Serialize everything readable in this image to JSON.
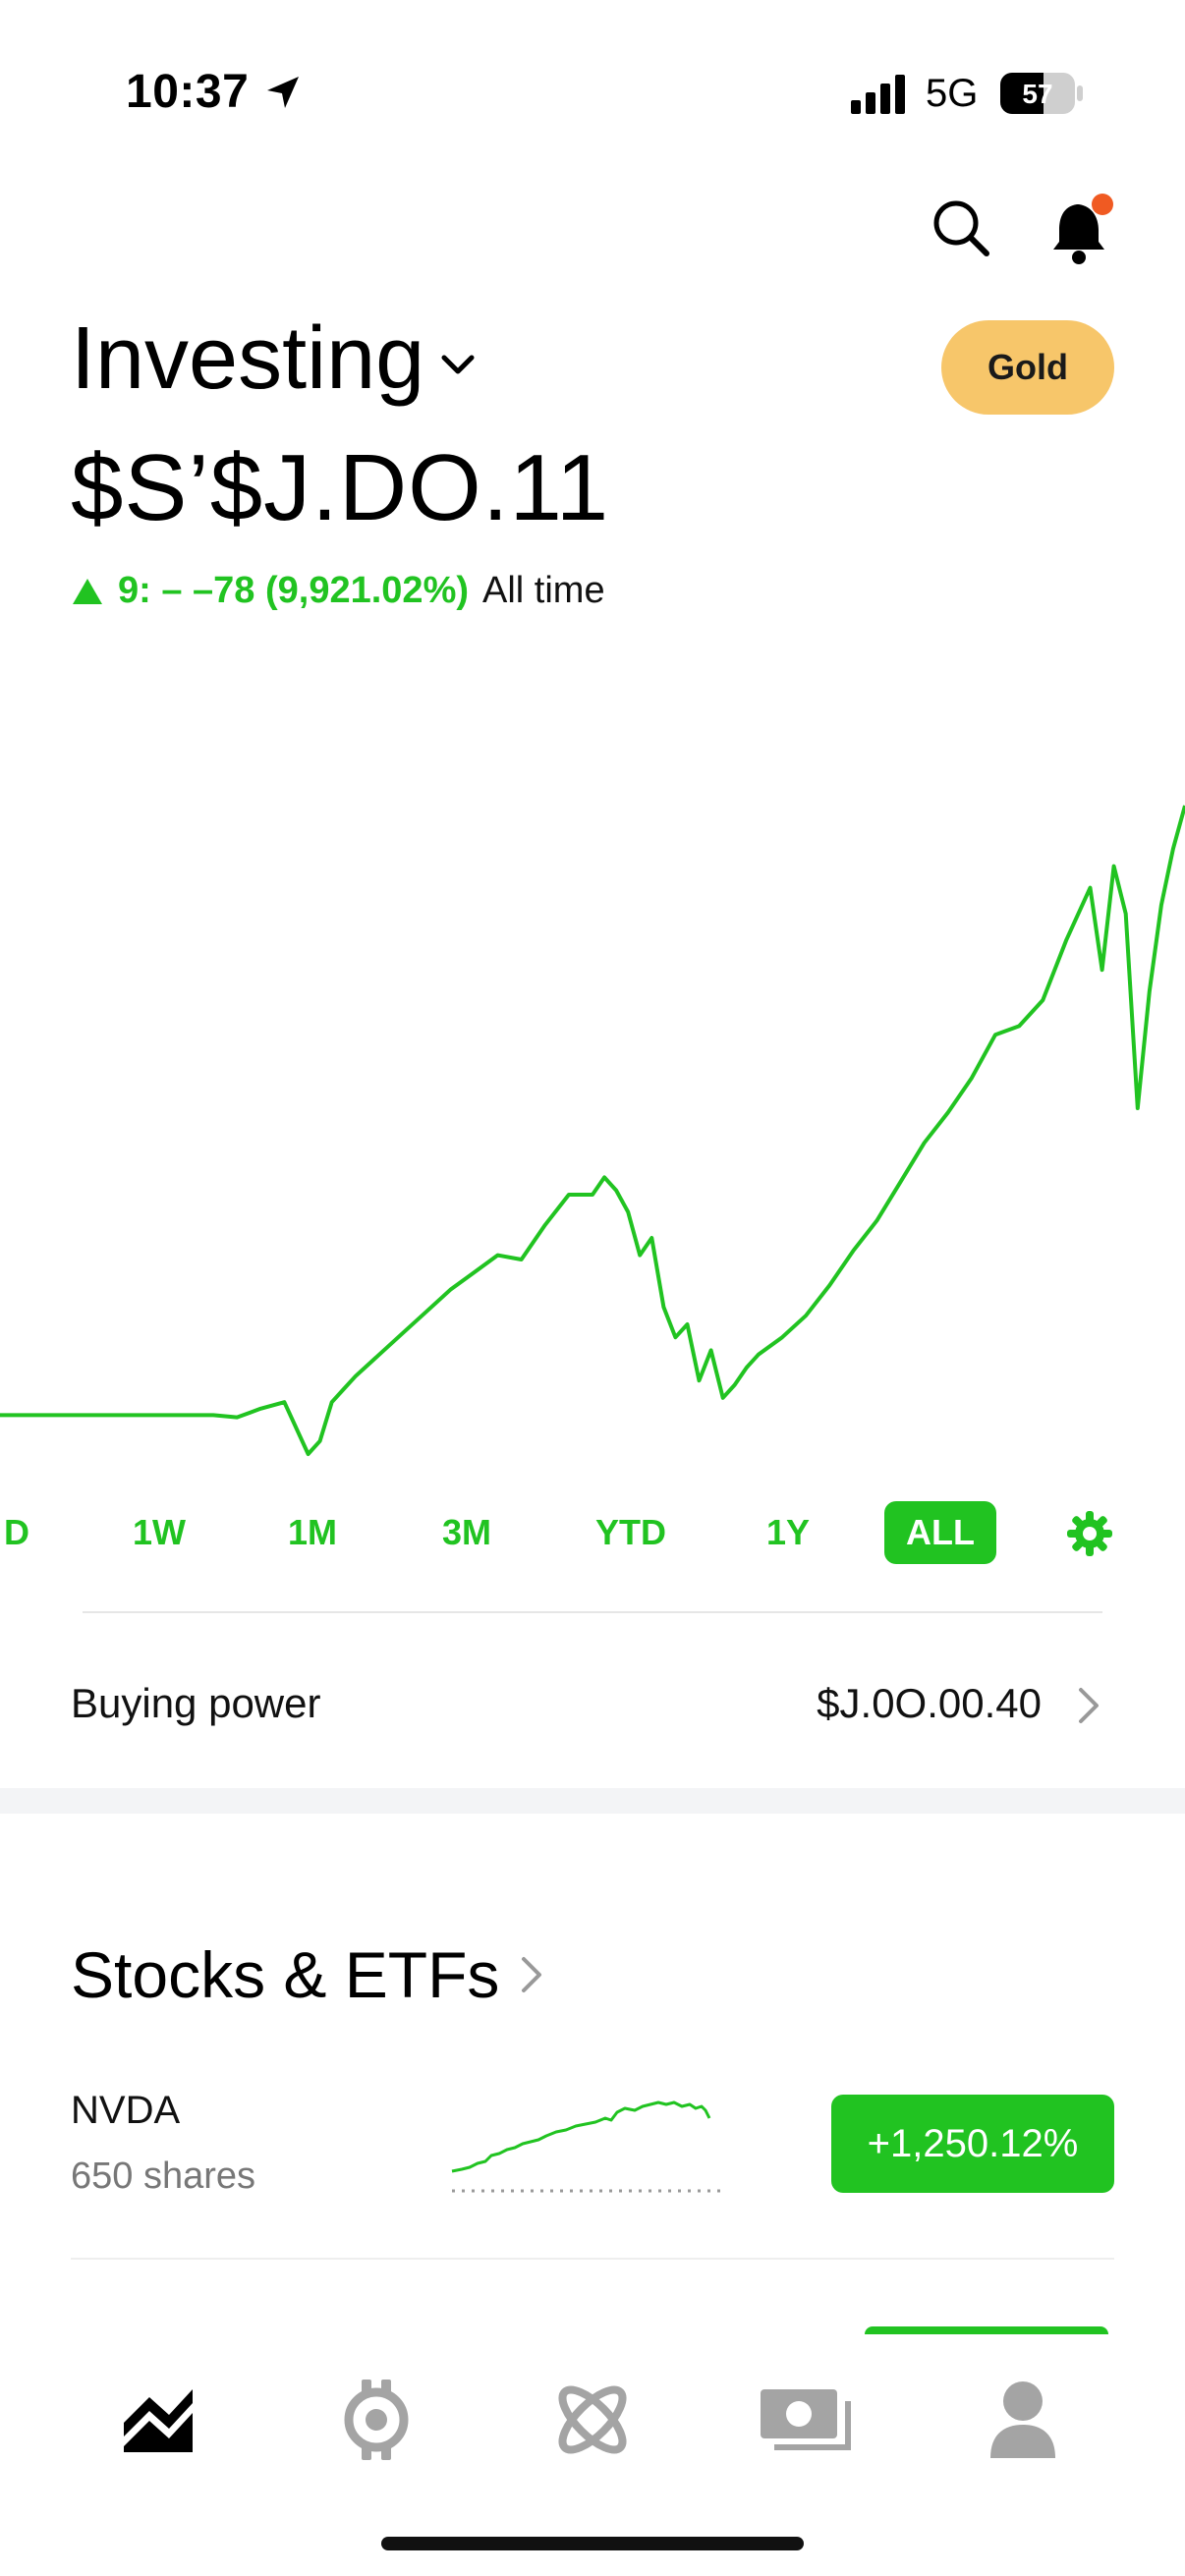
{
  "status_bar": {
    "time": "10:37",
    "network": "5G",
    "battery": "57"
  },
  "header": {
    "title": "Investing",
    "gold_label": "Gold",
    "balance": "$S’$J.DO.11",
    "change": "9: – –78 (9,921.02%)",
    "change_period": "All time"
  },
  "chart_data": {
    "type": "line",
    "title": "",
    "xlabel": "",
    "ylabel": "",
    "grid": false,
    "color": "#21c321",
    "x": [
      0,
      2,
      4,
      6,
      8,
      10,
      12,
      14,
      16,
      18,
      20,
      21,
      22,
      24,
      26,
      27,
      28,
      29,
      30,
      32,
      34,
      36,
      38,
      40,
      42,
      44,
      46,
      48,
      50,
      51,
      52,
      53,
      54,
      55,
      56,
      57,
      58,
      59,
      60,
      61,
      62,
      63,
      64,
      66,
      68,
      70,
      72,
      74,
      76,
      78,
      80,
      82,
      84,
      86,
      88,
      90,
      92,
      93,
      94,
      95,
      96,
      97,
      98,
      99,
      100
    ],
    "values": [
      0,
      0,
      0,
      0,
      0,
      0,
      0,
      0,
      0,
      0,
      -0.5,
      0.5,
      1.5,
      3,
      -9,
      -6,
      3,
      6,
      9,
      14,
      19,
      24,
      29,
      33,
      37,
      36,
      44,
      51,
      51,
      55,
      52,
      47,
      37,
      41,
      25,
      18,
      21,
      8,
      15,
      4,
      7,
      11,
      14,
      18,
      23,
      30,
      38,
      45,
      54,
      63,
      70,
      78,
      88,
      90,
      96,
      110,
      122,
      103,
      127,
      116,
      71,
      98,
      118,
      131,
      141
    ]
  },
  "ranges": {
    "items": [
      "D",
      "1W",
      "1M",
      "3M",
      "YTD",
      "1Y",
      "ALL"
    ],
    "active": "ALL"
  },
  "buying_power": {
    "label": "Buying power",
    "value": "$J.0O.00.40"
  },
  "stocks": {
    "title": "Stocks & ETFs",
    "rows": [
      {
        "ticker": "NVDA",
        "shares": "650 shares",
        "change": "+1,250.12%"
      }
    ]
  },
  "colors": {
    "accent": "#21c321",
    "gold": "#f7c66a",
    "notification": "#f05a22"
  },
  "nav": {
    "tabs": [
      {
        "name": "investing-tab-icon",
        "active": true
      },
      {
        "name": "crypto-tab-icon",
        "active": false
      },
      {
        "name": "discover-tab-icon",
        "active": false
      },
      {
        "name": "cash-tab-icon",
        "active": false
      },
      {
        "name": "account-tab-icon",
        "active": false
      }
    ]
  }
}
